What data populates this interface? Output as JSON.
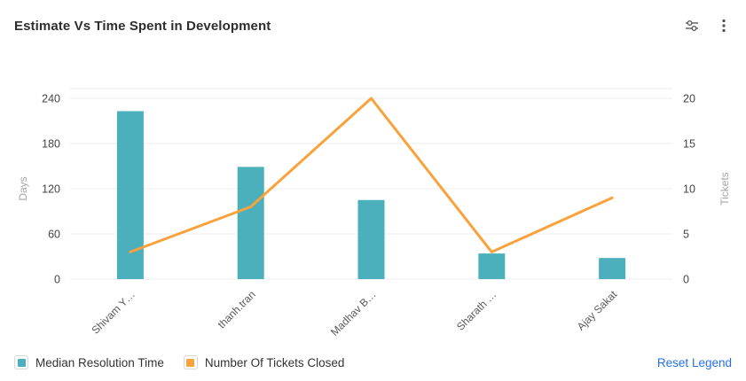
{
  "header": {
    "title": "Estimate Vs Time Spent in Development",
    "icons": [
      {
        "name": "sliders-icon"
      },
      {
        "name": "kebab-menu-icon"
      }
    ]
  },
  "chart_data": {
    "type": "bar",
    "subtype": "combo-bar-line-dual-axis",
    "title": "Estimate Vs Time Spent in Development",
    "categories": [
      "Shivam Y…",
      "thanh.tran",
      "Madhav B…",
      "Sharath …",
      "Ajay Sakat"
    ],
    "series": [
      {
        "name": "Median Resolution Time",
        "type": "bar",
        "axis": "left",
        "color": "#4BB0BB",
        "values": [
          223,
          149,
          105,
          34,
          28
        ]
      },
      {
        "name": "Number Of Tickets Closed",
        "type": "line",
        "axis": "right",
        "color": "#F9A23B",
        "values": [
          3,
          8,
          20,
          3,
          9
        ]
      }
    ],
    "left_axis": {
      "label": "Days",
      "min": 0,
      "max": 240,
      "ticks": [
        0,
        60,
        120,
        180,
        240
      ]
    },
    "right_axis": {
      "label": "Tickets",
      "min": 0,
      "max": 20,
      "ticks": [
        0,
        5,
        10,
        15,
        20
      ]
    },
    "grid": true,
    "gridline_color": "#ededed",
    "legend_position": "bottom"
  },
  "legend": {
    "items": [
      {
        "label": "Median Resolution Time",
        "color": "#4BB0BB"
      },
      {
        "label": "Number Of Tickets Closed",
        "color": "#F9A23B"
      }
    ],
    "reset_label": "Reset Legend",
    "reset_color": "#2570E8"
  }
}
